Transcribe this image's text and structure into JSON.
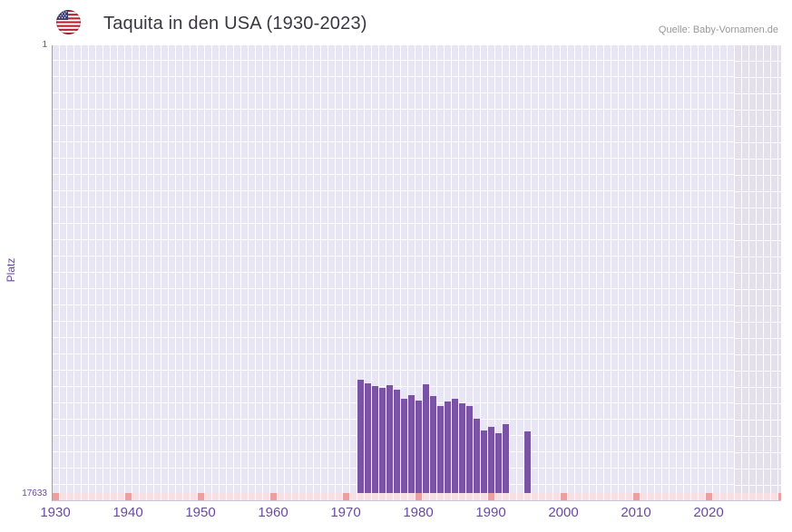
{
  "header": {
    "title": "Taquita in den USA (1930-2023)",
    "source": "Quelle: Baby-Vornamen.de"
  },
  "chart_data": {
    "type": "bar",
    "title": "Taquita in den USA (1930-2023)",
    "xlabel": "",
    "ylabel": "Platz",
    "legend": false,
    "grid": true,
    "y_axis": {
      "top_label": "1",
      "bottom_label": "17633",
      "best": 1,
      "worst": 17633,
      "inverted": true
    },
    "x_axis": {
      "start": 1930,
      "end": 2023,
      "ticks": [
        1930,
        1940,
        1950,
        1960,
        1970,
        1980,
        1990,
        2000,
        2010,
        2020
      ]
    },
    "future_band": {
      "start": 2024,
      "end": 2030
    },
    "series": [
      {
        "name": "Platz",
        "points": [
          {
            "year": 1972,
            "rank": 13180
          },
          {
            "year": 1973,
            "rank": 13320
          },
          {
            "year": 1974,
            "rank": 13430
          },
          {
            "year": 1975,
            "rank": 13500
          },
          {
            "year": 1976,
            "rank": 13390
          },
          {
            "year": 1977,
            "rank": 13570
          },
          {
            "year": 1978,
            "rank": 13930
          },
          {
            "year": 1979,
            "rank": 13790
          },
          {
            "year": 1980,
            "rank": 14000
          },
          {
            "year": 1981,
            "rank": 13360
          },
          {
            "year": 1982,
            "rank": 13820
          },
          {
            "year": 1983,
            "rank": 14210
          },
          {
            "year": 1984,
            "rank": 14040
          },
          {
            "year": 1985,
            "rank": 13930
          },
          {
            "year": 1986,
            "rank": 14110
          },
          {
            "year": 1987,
            "rank": 14210
          },
          {
            "year": 1988,
            "rank": 14710
          },
          {
            "year": 1989,
            "rank": 15180
          },
          {
            "year": 1990,
            "rank": 15030
          },
          {
            "year": 1991,
            "rank": 15280
          },
          {
            "year": 1992,
            "rank": 14930
          },
          {
            "year": 1995,
            "rank": 15210
          }
        ]
      }
    ]
  },
  "colors": {
    "bar": "#7b53a5",
    "plot_background": "#e9e6f3",
    "future_band_background": "#e3e0e9",
    "strip": "#f7e0e4",
    "strip_decade": "#ec9f9f",
    "axis_text": "#6a4a9e",
    "title_text": "#3a3742",
    "source_text": "#999999"
  }
}
